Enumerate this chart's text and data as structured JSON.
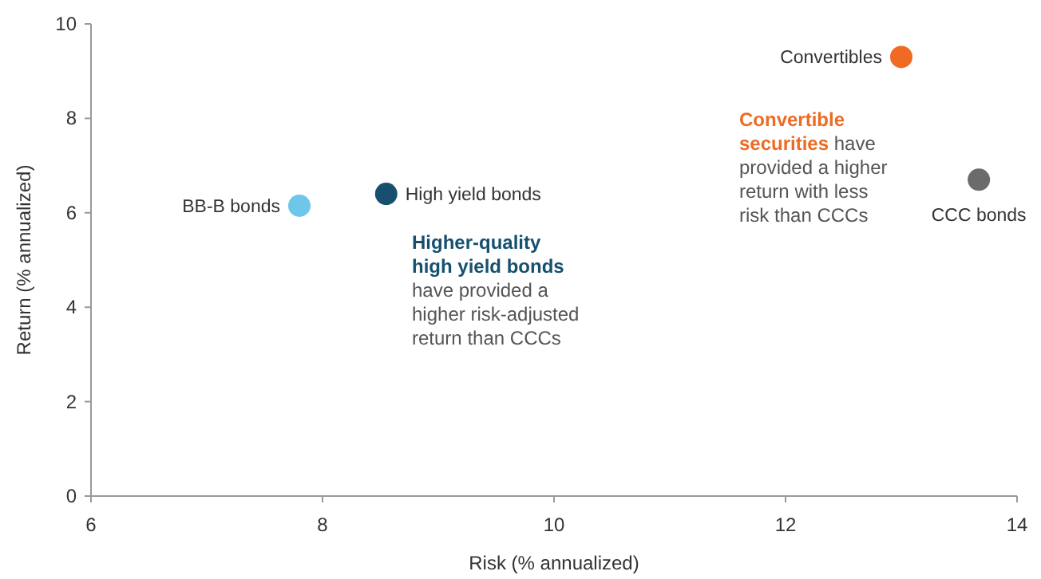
{
  "chart_data": {
    "type": "scatter",
    "xlabel": "Risk (% annualized)",
    "ylabel": "Return (% annualized)",
    "xlim": [
      6,
      14
    ],
    "xticks": [
      6,
      8,
      10,
      12,
      14
    ],
    "ylim": [
      0,
      10
    ],
    "yticks": [
      0,
      2,
      4,
      6,
      8,
      10
    ],
    "grid": false,
    "marker": "circle",
    "series": [
      {
        "name": "BB-B bonds",
        "color": "#6ec6ea",
        "x": [
          7.8
        ],
        "values": [
          6.15
        ]
      },
      {
        "name": "High yield bonds",
        "color": "#17506f",
        "x": [
          8.55
        ],
        "values": [
          6.4
        ]
      },
      {
        "name": "Convertibles",
        "color": "#ef6a23",
        "x": [
          13.0
        ],
        "values": [
          9.3
        ]
      },
      {
        "name": "CCC bonds",
        "color": "#6b6b6b",
        "x": [
          13.67
        ],
        "values": [
          6.7
        ]
      }
    ],
    "annotations": [
      "Higher-quality high yield bonds",
      "have provided a higher risk-adjusted return than CCCs",
      "Convertible securities",
      "have provided a higher return with less risk than CCCs"
    ]
  }
}
